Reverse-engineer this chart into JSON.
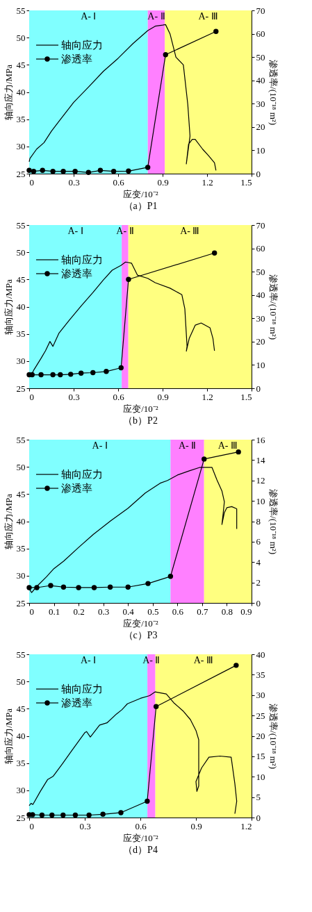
{
  "chart_data": [
    {
      "type": "line",
      "title": "（a）P1",
      "xlabel": "应变/10⁻²",
      "ylabel": "轴向应力/MPa",
      "y2label": "渗透率/(10⁻¹⁸ m²)",
      "xlim": [
        0,
        1.5
      ],
      "xticks": [
        0,
        0.3,
        0.6,
        0.9,
        1.2,
        1.5
      ],
      "ylim": [
        25,
        55
      ],
      "yticks": [
        25,
        30,
        35,
        40,
        45,
        50,
        55
      ],
      "y2lim": [
        0,
        70
      ],
      "y2ticks": [
        0,
        10,
        20,
        30,
        40,
        50,
        60,
        70
      ],
      "legend": "top left",
      "grid": false,
      "bands": [
        {
          "axis": "x",
          "from": 0,
          "to": 0.8,
          "label": "A- Ⅰ",
          "color": "#80ffff"
        },
        {
          "axis": "x",
          "from": 0.8,
          "to": 0.915,
          "label": "A- Ⅱ",
          "color": "#ff80ff"
        },
        {
          "axis": "x",
          "from": 0.915,
          "to": 1.5,
          "label": "A- Ⅲ",
          "color": "#ffff80"
        }
      ],
      "series": [
        {
          "name": "轴向应力",
          "color": "#000000",
          "marker": "none",
          "x": [
            0,
            0.005,
            0.05,
            0.1,
            0.15,
            0.2,
            0.3,
            0.4,
            0.5,
            0.6,
            0.7,
            0.8,
            0.85,
            0.9,
            0.92,
            0.95,
            0.99,
            1.04,
            1.07,
            1.085,
            1.06,
            1.075,
            1.1,
            1.12,
            1.17,
            1.21,
            1.25,
            1.26
          ],
          "values": [
            27.2,
            27.8,
            29.5,
            30.7,
            32.8,
            34.6,
            38.1,
            40.9,
            43.8,
            46.2,
            48.9,
            51.3,
            52.1,
            52.3,
            52.4,
            50.7,
            46.4,
            45,
            37.7,
            31.9,
            26.8,
            30.4,
            31.3,
            31.3,
            29.5,
            28.3,
            27,
            25.6
          ]
        },
        {
          "name": "渗透率",
          "color": "#000000",
          "marker": "circle",
          "axis": "y2",
          "x": [
            0,
            0.03,
            0.09,
            0.16,
            0.23,
            0.31,
            0.4,
            0.48,
            0.57,
            0.67,
            0.8,
            0.92,
            1.26
          ],
          "values": [
            1.4,
            1,
            1.4,
            1,
            1,
            1,
            0.5,
            1.4,
            1,
            1.1,
            2.7,
            51,
            61
          ]
        }
      ]
    },
    {
      "type": "line",
      "title": "（b）P2",
      "xlabel": "应变/10⁻²",
      "ylabel": "轴向应力/MPa",
      "y2label": "渗透率/(10⁻¹⁸ m²)",
      "xlim": [
        0,
        1.5
      ],
      "xticks": [
        0,
        0.3,
        0.6,
        0.9,
        1.2,
        1.5
      ],
      "ylim": [
        25,
        55
      ],
      "yticks": [
        25,
        30,
        35,
        40,
        45,
        50,
        55
      ],
      "y2lim": [
        0,
        70
      ],
      "y2ticks": [
        0,
        10,
        20,
        30,
        40,
        50,
        60,
        70
      ],
      "legend": "top left",
      "grid": false,
      "bands": [
        {
          "axis": "x",
          "from": 0,
          "to": 0.624,
          "label": "A- Ⅰ",
          "color": "#80ffff"
        },
        {
          "axis": "x",
          "from": 0.624,
          "to": 0.669,
          "label": "A- Ⅱ",
          "color": "#ff80ff"
        },
        {
          "axis": "x",
          "from": 0.669,
          "to": 1.5,
          "label": "A- Ⅲ",
          "color": "#ffff80"
        }
      ],
      "series": [
        {
          "name": "轴向应力",
          "color": "#000000",
          "marker": "none",
          "x": [
            0.01,
            0.03,
            0.08,
            0.11,
            0.14,
            0.16,
            0.2,
            0.27,
            0.35,
            0.43,
            0.5,
            0.56,
            0.62,
            0.65,
            0.69,
            0.73,
            0.8,
            0.85,
            0.95,
            1.03,
            1.05,
            1.065,
            1.06,
            1.08,
            1.12,
            1.16,
            1.22,
            1.24,
            1.25
          ],
          "values": [
            27.2,
            28.3,
            30.5,
            31.9,
            33.6,
            32.7,
            35.1,
            37.5,
            40.1,
            42.6,
            44.9,
            46.7,
            47.6,
            48.2,
            48,
            45.8,
            45.2,
            44.4,
            43.4,
            42.2,
            39.6,
            32.7,
            31.8,
            34.2,
            36.6,
            37,
            36.1,
            34.1,
            31.9
          ]
        },
        {
          "name": "渗透率",
          "color": "#000000",
          "marker": "circle",
          "axis": "y2",
          "x": [
            0,
            0.02,
            0.08,
            0.16,
            0.21,
            0.28,
            0.35,
            0.43,
            0.52,
            0.62,
            0.67,
            1.25
          ],
          "values": [
            5.8,
            5.8,
            5.8,
            5.8,
            5.8,
            6,
            6.5,
            6.7,
            7.2,
            8.8,
            46.7,
            58
          ]
        }
      ]
    },
    {
      "type": "line",
      "title": "（c）P3",
      "xlabel": "应变/10⁻²",
      "ylabel": "轴向应力/MPa",
      "y2label": "渗透率/(10⁻¹⁸ m²)",
      "xlim": [
        0,
        0.9
      ],
      "xticks": [
        0,
        0.1,
        0.2,
        0.3,
        0.4,
        0.5,
        0.6,
        0.7,
        0.8,
        0.9
      ],
      "ylim": [
        25,
        55
      ],
      "yticks": [
        25,
        30,
        35,
        40,
        45,
        50,
        55
      ],
      "y2lim": [
        0,
        16
      ],
      "y2ticks": [
        0,
        2,
        4,
        6,
        8,
        10,
        12,
        14,
        16
      ],
      "legend": "top left",
      "grid": false,
      "bands": [
        {
          "axis": "x",
          "from": 0,
          "to": 0.572,
          "label": "A- Ⅰ",
          "color": "#80ffff"
        },
        {
          "axis": "x",
          "from": 0.572,
          "to": 0.708,
          "label": "A- Ⅱ",
          "color": "#ff80ff"
        },
        {
          "axis": "x",
          "from": 0.708,
          "to": 0.9,
          "label": "A- Ⅲ",
          "color": "#ffff80"
        }
      ],
      "series": [
        {
          "name": "轴向应力",
          "color": "#000000",
          "marker": "none",
          "x": [
            0,
            0.01,
            0.03,
            0.07,
            0.1,
            0.14,
            0.2,
            0.26,
            0.33,
            0.4,
            0.47,
            0.53,
            0.56,
            0.6,
            0.65,
            0.69,
            0.74,
            0.76,
            0.78,
            0.79,
            0.785,
            0.78,
            0.79,
            0.8,
            0.82,
            0.84,
            0.84
          ],
          "values": [
            27.6,
            26.9,
            28,
            29.8,
            31.3,
            32.7,
            35.2,
            37.6,
            40.1,
            42.4,
            45.2,
            47,
            47.5,
            48.5,
            49.3,
            49.9,
            49.9,
            47.6,
            45.6,
            43.6,
            41.4,
            39.4,
            41.6,
            42.5,
            42.7,
            42.3,
            38.6
          ]
        },
        {
          "name": "渗透率",
          "color": "#000000",
          "marker": "circle",
          "axis": "y2",
          "x": [
            0,
            0.031,
            0.087,
            0.139,
            0.2,
            0.263,
            0.328,
            0.4,
            0.481,
            0.572,
            0.708,
            0.847
          ],
          "values": [
            1.5,
            1.5,
            1.7,
            1.55,
            1.5,
            1.5,
            1.55,
            1.55,
            1.9,
            2.6,
            14.1,
            14.8
          ]
        }
      ]
    },
    {
      "type": "line",
      "title": "（d）P4",
      "xlabel": "应变/10⁻²",
      "ylabel": "轴向应力/MPa",
      "y2label": "渗透率/(10⁻¹⁸ m²)",
      "xlim": [
        0,
        1.2
      ],
      "xticks": [
        0,
        0.3,
        0.6,
        0.9,
        1.2
      ],
      "ylim": [
        25,
        55
      ],
      "yticks": [
        25,
        30,
        35,
        40,
        45,
        50,
        55
      ],
      "y2lim": [
        0,
        40
      ],
      "y2ticks": [
        0,
        5,
        10,
        15,
        20,
        25,
        30,
        35,
        40
      ],
      "legend": "top left",
      "grid": false,
      "bands": [
        {
          "axis": "x",
          "from": 0,
          "to": 0.638,
          "label": "A- Ⅰ",
          "color": "#80ffff"
        },
        {
          "axis": "x",
          "from": 0.638,
          "to": 0.681,
          "label": "A- Ⅱ",
          "color": "#ff80ff"
        },
        {
          "axis": "x",
          "from": 0.681,
          "to": 1.2,
          "label": "A- Ⅲ",
          "color": "#ffff80"
        }
      ],
      "series": [
        {
          "name": "轴向应力",
          "color": "#000000",
          "marker": "none",
          "x": [
            0,
            0.01,
            0.02,
            0.06,
            0.1,
            0.13,
            0.18,
            0.23,
            0.3,
            0.31,
            0.33,
            0.38,
            0.42,
            0.47,
            0.5,
            0.53,
            0.6,
            0.65,
            0.68,
            0.74,
            0.78,
            0.83,
            0.87,
            0.9,
            0.915,
            0.915,
            0.905,
            0.9,
            0.93,
            0.97,
            1.03,
            1.09,
            1.11,
            1.12,
            1.11
          ],
          "values": [
            27.2,
            27.6,
            27.4,
            29.8,
            32,
            32.6,
            34.9,
            37.3,
            40.6,
            40.8,
            39.8,
            42,
            42.4,
            44,
            44.8,
            45.9,
            46.9,
            47.4,
            48.1,
            47.7,
            46.1,
            44.6,
            43,
            41,
            39.3,
            30.8,
            29.8,
            31.6,
            34.1,
            36.1,
            36.3,
            36.1,
            31.2,
            28,
            25.7
          ]
        },
        {
          "name": "渗透率",
          "color": "#000000",
          "marker": "circle",
          "axis": "y2",
          "x": [
            0,
            0.018,
            0.069,
            0.123,
            0.183,
            0.249,
            0.323,
            0.398,
            0.495,
            0.637,
            0.685,
            1.117
          ],
          "values": [
            0.7,
            0.7,
            0.6,
            0.6,
            0.6,
            0.6,
            0.6,
            0.8,
            1.2,
            4,
            27.2,
            37.3
          ]
        }
      ]
    }
  ]
}
